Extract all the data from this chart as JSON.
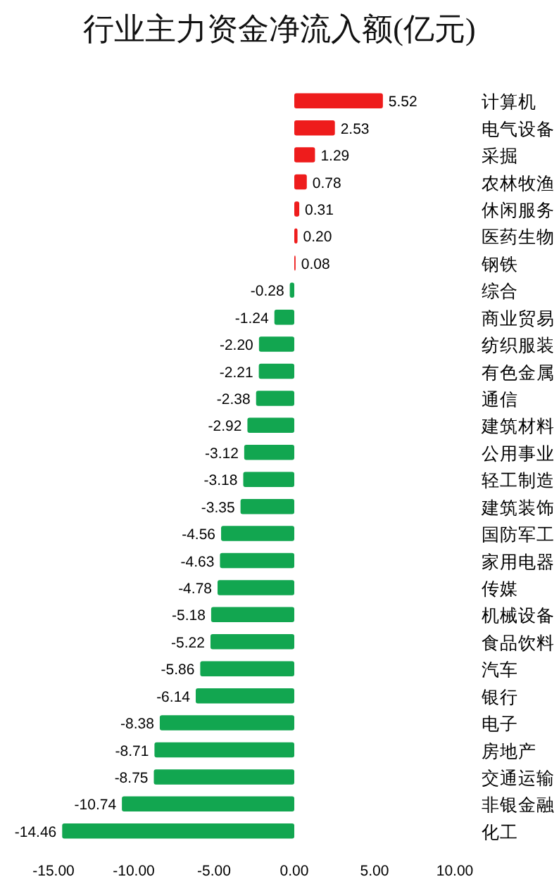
{
  "chart_data": {
    "type": "bar",
    "title": "行业主力资金净流入额(亿元)",
    "orientation": "horizontal",
    "categories": [
      "计算机",
      "电气设备",
      "采掘",
      "农林牧渔",
      "休闲服务",
      "医药生物",
      "钢铁",
      "综合",
      "商业贸易",
      "纺织服装",
      "有色金属",
      "通信",
      "建筑材料",
      "公用事业",
      "轻工制造",
      "建筑装饰",
      "国防军工",
      "家用电器",
      "传媒",
      "机械设备",
      "食品饮料",
      "汽车",
      "银行",
      "电子",
      "房地产",
      "交通运输",
      "非银金融",
      "化工"
    ],
    "values": [
      5.52,
      2.53,
      1.29,
      0.78,
      0.31,
      0.2,
      0.08,
      -0.28,
      -1.24,
      -2.2,
      -2.21,
      -2.38,
      -2.92,
      -3.12,
      -3.18,
      -3.35,
      -4.56,
      -4.63,
      -4.78,
      -5.18,
      -5.22,
      -5.86,
      -6.14,
      -8.38,
      -8.71,
      -8.75,
      -10.74,
      -14.46
    ],
    "value_labels": [
      "5.52",
      "2.53",
      "1.29",
      "0.78",
      "0.31",
      "0.20",
      "0.08",
      "-0.28",
      "-1.24",
      "-2.20",
      "-2.21",
      "-2.38",
      "-2.92",
      "-3.12",
      "-3.18",
      "-3.35",
      "-4.56",
      "-4.63",
      "-4.78",
      "-5.18",
      "-5.22",
      "-5.86",
      "-6.14",
      "-8.38",
      "-8.71",
      "-8.75",
      "-10.74",
      "-14.46"
    ],
    "colors": [
      "#ee1c1c",
      "#ee1c1c",
      "#ee1c1c",
      "#ee1c1c",
      "#ee1c1c",
      "#ee1c1c",
      "#ee1c1c",
      "#12a650",
      "#12a650",
      "#12a650",
      "#12a650",
      "#12a650",
      "#12a650",
      "#12a650",
      "#12a650",
      "#12a650",
      "#12a650",
      "#12a650",
      "#12a650",
      "#12a650",
      "#12a650",
      "#12a650",
      "#12a650",
      "#12a650",
      "#12a650",
      "#12a650",
      "#12a650",
      "#12a650"
    ],
    "xlim": [
      -15,
      10
    ],
    "xticks": [
      {
        "value": -15,
        "label": "-15.00"
      },
      {
        "value": -10,
        "label": "-10.00"
      },
      {
        "value": -5,
        "label": "-5.00"
      },
      {
        "value": 0,
        "label": "0.00"
      },
      {
        "value": 5,
        "label": "5.00"
      },
      {
        "value": 10,
        "label": "10.00"
      }
    ]
  }
}
